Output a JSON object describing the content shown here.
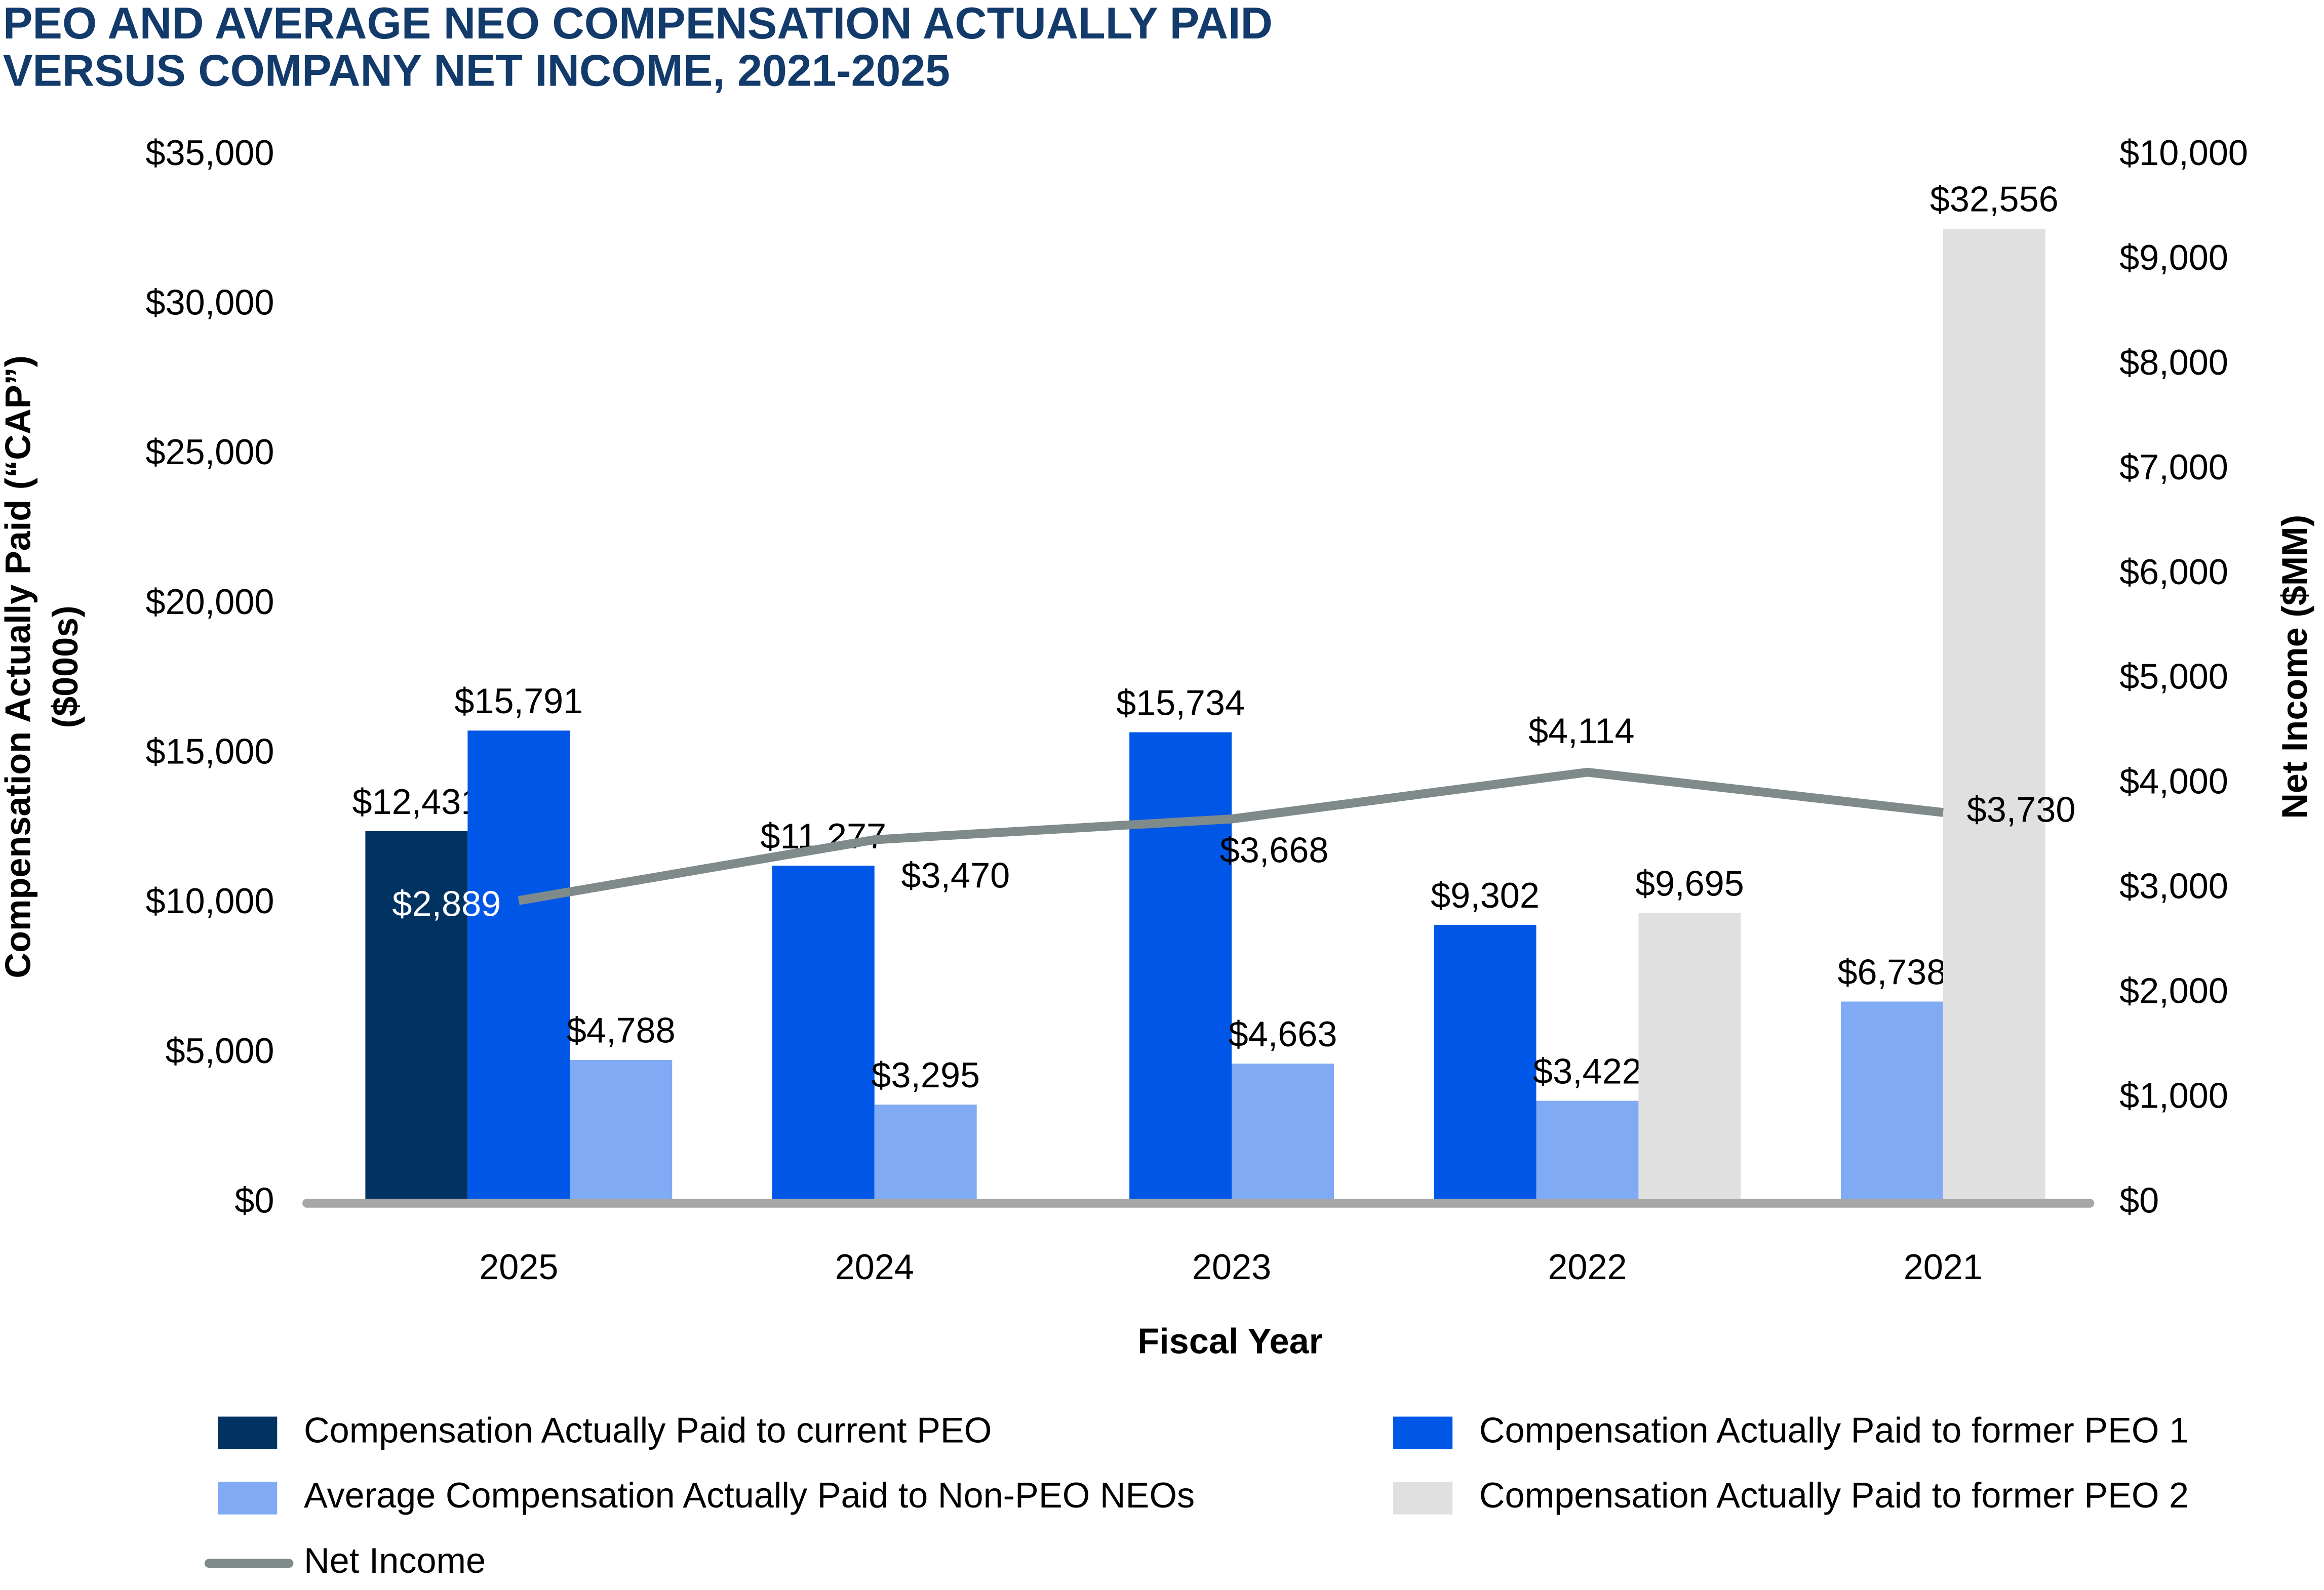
{
  "chart_data": {
    "type": "bar",
    "title": [
      "PEO AND AVERAGE NEO COMPENSATION ACTUALLY PAID",
      "VERSUS COMPANY NET INCOME, 2021-2025"
    ],
    "xlabel": "Fiscal Year",
    "ylabel": [
      "Compensation Actually Paid (“CAP”)",
      "($000s)"
    ],
    "y2label": "Net Income ($MM)",
    "categories": [
      "2025",
      "2024",
      "2023",
      "2022",
      "2021"
    ],
    "series": [
      {
        "name": "Compensation Actually Paid to current PEO",
        "color": "#003361",
        "type": "bar",
        "values": [
          12431,
          null,
          null,
          null,
          null
        ],
        "value_labels": [
          "$12,431",
          null,
          null,
          null,
          null
        ]
      },
      {
        "name": "Compensation Actually Paid to former PEO 1",
        "color": "#0057e7",
        "type": "bar",
        "values": [
          15791,
          11277,
          15734,
          9302,
          null
        ],
        "value_labels": [
          "$15,791",
          "$11,277",
          "$15,734",
          "$9,302",
          null
        ]
      },
      {
        "name": "Average Compensation Actually Paid to Non-PEO NEOs",
        "color": "#80aaf3",
        "type": "bar",
        "values": [
          4788,
          3295,
          4663,
          3422,
          6738
        ],
        "value_labels": [
          "$4,788",
          "$3,295",
          "$4,663",
          "$3,422",
          "$6,738"
        ]
      },
      {
        "name": "Compensation Actually Paid to former PEO 2",
        "color": "#e0e0e0",
        "type": "bar",
        "values": [
          null,
          null,
          null,
          9695,
          32556
        ],
        "value_labels": [
          null,
          null,
          null,
          "$9,695",
          "$32,556"
        ]
      },
      {
        "name": "Net Income",
        "color": "#7f8a8a",
        "type": "line",
        "axis": "y2",
        "values": [
          2889,
          3470,
          3668,
          4114,
          3730
        ],
        "value_labels": [
          "$2,889",
          "$3,470",
          "$3,668",
          "$4,114",
          "$3,730"
        ]
      }
    ],
    "ylim": [
      0,
      35000
    ],
    "yticks": [
      {
        "value": 0,
        "label": "$0"
      },
      {
        "value": 5000,
        "label": "$5,000"
      },
      {
        "value": 10000,
        "label": "$10,000"
      },
      {
        "value": 15000,
        "label": "$15,000"
      },
      {
        "value": 20000,
        "label": "$20,000"
      },
      {
        "value": 25000,
        "label": "$25,000"
      },
      {
        "value": 30000,
        "label": "$30,000"
      },
      {
        "value": 35000,
        "label": "$35,000"
      }
    ],
    "y2lim": [
      0,
      10000
    ],
    "y2ticks": [
      {
        "value": 0,
        "label": "$0"
      },
      {
        "value": 1000,
        "label": "$1,000"
      },
      {
        "value": 2000,
        "label": "$2,000"
      },
      {
        "value": 3000,
        "label": "$3,000"
      },
      {
        "value": 4000,
        "label": "$4,000"
      },
      {
        "value": 5000,
        "label": "$5,000"
      },
      {
        "value": 6000,
        "label": "$6,000"
      },
      {
        "value": 7000,
        "label": "$7,000"
      },
      {
        "value": 8000,
        "label": "$8,000"
      },
      {
        "value": 9000,
        "label": "$9,000"
      },
      {
        "value": 10000,
        "label": "$10,000"
      }
    ],
    "grid": false
  }
}
